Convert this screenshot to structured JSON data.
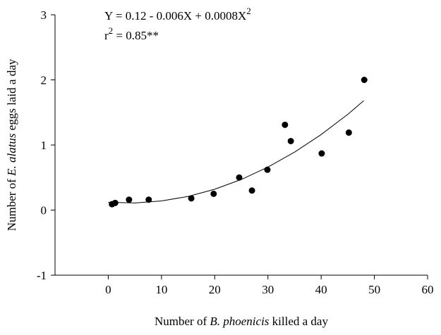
{
  "chart_data": {
    "type": "scatter",
    "annotations": [
      [
        "Y = 0.12 - 0.006X + 0.0008X",
        "2"
      ],
      [
        "r",
        "2",
        " = 0.85**"
      ]
    ],
    "x_label": [
      "Number of ",
      "B. phoenicis",
      " killed a day"
    ],
    "y_label": [
      "Number of ",
      "E. alatus",
      " eggs laid a day"
    ],
    "color": "#000000",
    "x": [
      0.7,
      1.3,
      3.9,
      7.6,
      15.6,
      19.8,
      24.6,
      27,
      29.9,
      33.2,
      34.3,
      40.1,
      45.2,
      48.1
    ],
    "y": [
      0.09,
      0.11,
      0.16,
      0.16,
      0.18,
      0.25,
      0.5,
      0.3,
      0.62,
      1.31,
      1.06,
      0.87,
      1.19,
      2.0
    ],
    "fit": {
      "x": [
        0,
        5,
        10,
        15,
        20,
        25,
        30,
        35,
        40,
        45,
        48
      ],
      "y": [
        0.12,
        0.11,
        0.14,
        0.21,
        0.32,
        0.47,
        0.66,
        0.89,
        1.16,
        1.47,
        1.68
      ]
    },
    "xlim": [
      -10,
      60
    ],
    "xticks": [
      0,
      10,
      20,
      30,
      40,
      50,
      60
    ],
    "ylim": [
      -1,
      3
    ],
    "yticks": [
      -1,
      0,
      1,
      2,
      3
    ]
  }
}
